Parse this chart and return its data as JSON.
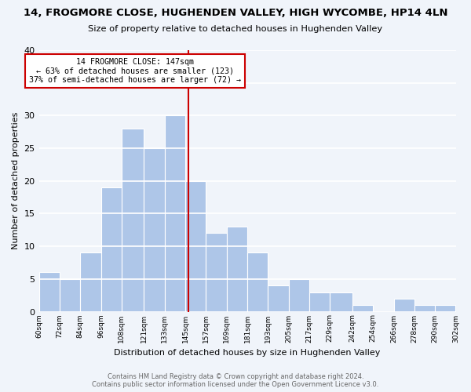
{
  "title": "14, FROGMORE CLOSE, HUGHENDEN VALLEY, HIGH WYCOMBE, HP14 4LN",
  "subtitle": "Size of property relative to detached houses in Hughenden Valley",
  "xlabel": "Distribution of detached houses by size in Hughenden Valley",
  "ylabel": "Number of detached properties",
  "bin_edges": [
    60,
    72,
    84,
    96,
    108,
    121,
    133,
    145,
    157,
    169,
    181,
    193,
    205,
    217,
    229,
    242,
    254,
    266,
    278,
    290,
    302
  ],
  "bin_labels": [
    "60sqm",
    "72sqm",
    "84sqm",
    "96sqm",
    "108sqm",
    "121sqm",
    "133sqm",
    "145sqm",
    "157sqm",
    "169sqm",
    "181sqm",
    "193sqm",
    "205sqm",
    "217sqm",
    "229sqm",
    "242sqm",
    "254sqm",
    "266sqm",
    "278sqm",
    "290sqm",
    "302sqm"
  ],
  "counts": [
    6,
    5,
    9,
    19,
    28,
    25,
    30,
    20,
    12,
    13,
    9,
    4,
    5,
    3,
    3,
    1,
    0,
    2,
    1,
    1
  ],
  "bar_color": "#aec6e8",
  "bar_edge_color": "#ffffff",
  "property_line_x": 147,
  "property_line_color": "#cc0000",
  "annotation_text": "14 FROGMORE CLOSE: 147sqm\n← 63% of detached houses are smaller (123)\n37% of semi-detached houses are larger (72) →",
  "annotation_box_color": "#ffffff",
  "annotation_box_edge_color": "#cc0000",
  "ylim": [
    0,
    40
  ],
  "yticks": [
    0,
    5,
    10,
    15,
    20,
    25,
    30,
    35,
    40
  ],
  "background_color": "#f0f4fa",
  "grid_color": "#ffffff",
  "footer_line1": "Contains HM Land Registry data © Crown copyright and database right 2024.",
  "footer_line2": "Contains public sector information licensed under the Open Government Licence v3.0."
}
